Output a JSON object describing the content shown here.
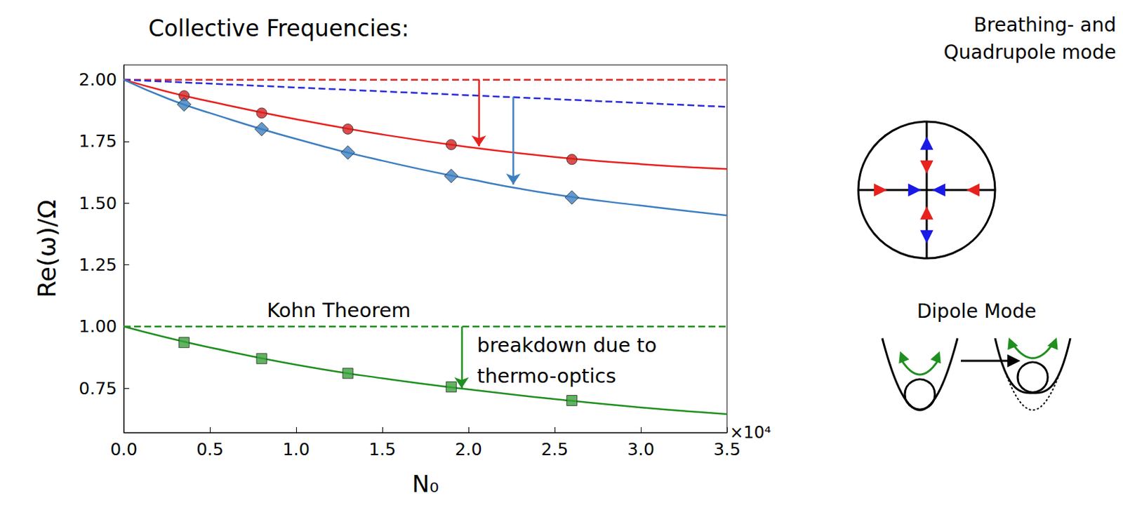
{
  "chart_data": {
    "type": "line",
    "title": "Collective Frequencies:",
    "x_label": "N₀",
    "x_multiplier": "×10⁴",
    "y_label": "Re(ω)/Ω",
    "xlim": [
      0,
      3.5
    ],
    "ylim": [
      0.57,
      2.06
    ],
    "xticks": [
      {
        "value": 0,
        "label": "0.0"
      },
      {
        "value": 0.5,
        "label": "0.5"
      },
      {
        "value": 1,
        "label": "1.0"
      },
      {
        "value": 1.5,
        "label": "1.5"
      },
      {
        "value": 2,
        "label": "2.0"
      },
      {
        "value": 2.5,
        "label": "2.5"
      },
      {
        "value": 3,
        "label": "3.0"
      },
      {
        "value": 3.5,
        "label": "3.5"
      }
    ],
    "yticks": [
      0.75,
      {
        "value": 1,
        "label": "1.00"
      },
      1.25,
      {
        "value": 1.5,
        "label": "1.50"
      },
      1.75,
      {
        "value": 2,
        "label": "2.00"
      }
    ],
    "grid": false,
    "series": [
      {
        "type": "line",
        "line_style": "dashed",
        "color": "#e8211f",
        "x": [
          0,
          3.5
        ],
        "values": [
          2.0,
          2.0
        ]
      },
      {
        "type": "line",
        "line_style": "dashed",
        "color": "#2a2ad8",
        "x": [
          0,
          3.5
        ],
        "values": [
          2.0,
          1.89
        ]
      },
      {
        "type": "line",
        "line_style": "dashed",
        "color": "#1f8f1f",
        "x": [
          0,
          3.5
        ],
        "values": [
          1.0,
          1.0
        ]
      },
      {
        "type": "line",
        "line_style": "solid",
        "color": "#e8211f",
        "x": [
          0,
          0.25,
          0.5,
          1.0,
          1.5,
          2.0,
          2.5,
          3.0,
          3.5
        ],
        "values": [
          2.0,
          1.952,
          1.912,
          1.84,
          1.778,
          1.727,
          1.687,
          1.658,
          1.638
        ]
      },
      {
        "type": "line",
        "line_style": "solid",
        "color": "#3d7fc0",
        "x": [
          0,
          0.25,
          0.5,
          1.0,
          1.5,
          2.0,
          2.5,
          3.0,
          3.5
        ],
        "values": [
          2.0,
          1.925,
          1.865,
          1.76,
          1.672,
          1.598,
          1.535,
          1.49,
          1.45
        ]
      },
      {
        "type": "line",
        "line_style": "solid",
        "color": "#1f8f1f",
        "x": [
          0,
          0.25,
          0.5,
          1.0,
          1.5,
          2.0,
          2.5,
          3.0,
          3.5
        ],
        "values": [
          1.0,
          0.955,
          0.915,
          0.845,
          0.79,
          0.745,
          0.706,
          0.672,
          0.645
        ]
      },
      {
        "type": "scatter",
        "marker": "circle",
        "color": "#d42020",
        "x": [
          0.35,
          0.8,
          1.3,
          1.9,
          2.6
        ],
        "values": [
          1.935,
          1.865,
          1.8,
          1.737,
          1.677
        ]
      },
      {
        "type": "scatter",
        "marker": "diamond",
        "color": "#3d7fc0",
        "x": [
          0.35,
          0.8,
          1.3,
          1.9,
          2.6
        ],
        "values": [
          1.9,
          1.8,
          1.705,
          1.61,
          1.523
        ]
      },
      {
        "type": "scatter",
        "marker": "square",
        "color": "#3aa03a",
        "x": [
          0.35,
          0.8,
          1.3,
          1.9,
          2.6
        ],
        "values": [
          0.935,
          0.87,
          0.81,
          0.755,
          0.7
        ]
      }
    ],
    "arrows": [
      {
        "x": 2.06,
        "from": 2.0,
        "to": 1.73,
        "color": "#e8211f"
      },
      {
        "x": 2.26,
        "from": 1.93,
        "to": 1.575,
        "color": "#3d7fc0"
      },
      {
        "x": 1.96,
        "from": 1.0,
        "to": 0.75,
        "color": "#1f8f1f"
      }
    ],
    "annotations": [
      {
        "text": "Kohn Theorem",
        "x": 0.83,
        "y": 1.065
      },
      {
        "text": "breakdown due to",
        "x": 2.05,
        "y": 0.925
      },
      {
        "text": "thermo-optics",
        "x": 2.05,
        "y": 0.8
      }
    ]
  },
  "diagram": {
    "labels": [
      {
        "parts": [
          {
            "text": "Breathing",
            "color": "#e8211f"
          },
          {
            "text": "- and",
            "color": "#000000"
          }
        ]
      },
      {
        "parts": [
          {
            "text": "Quadrupole",
            "color": "#1a1ae6"
          },
          {
            "text": " mode",
            "color": "#000000"
          }
        ]
      },
      {
        "parts": [
          {
            "text": "Dipole",
            "color": "#1f8f1f"
          },
          {
            "text": " Mode",
            "color": "#000000"
          }
        ]
      }
    ]
  }
}
